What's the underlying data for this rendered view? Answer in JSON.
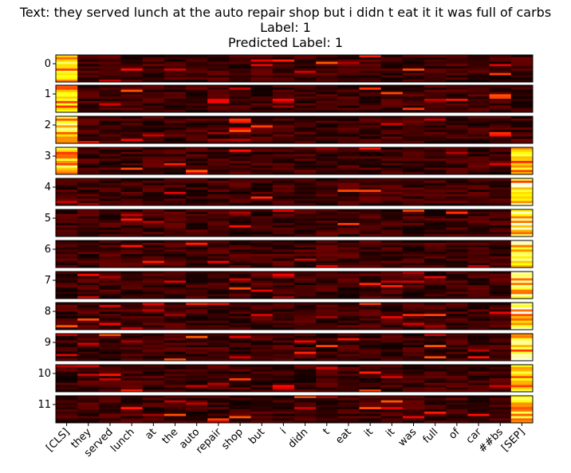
{
  "title": {
    "line1": "Text: they served lunch at the auto repair shop but i didn t eat it it was full of carbs",
    "line2": "Label: 1",
    "line3": "Predicted Label: 1"
  },
  "colormap": "hot",
  "chart_data": {
    "type": "heatmap",
    "layers": [
      "0",
      "1",
      "2",
      "3",
      "4",
      "5",
      "6",
      "7",
      "8",
      "9",
      "10",
      "11"
    ],
    "tokens": [
      "[CLS]",
      "they",
      "served",
      "lunch",
      "at",
      "the",
      "auto",
      "repair",
      "shop",
      "but",
      "i",
      "didn",
      "t",
      "eat",
      "it",
      "it",
      "was",
      "full",
      "of",
      "car",
      "##bs",
      "[SEP]"
    ],
    "rows_per_layer": 12,
    "highlights": [
      {
        "layer": 0,
        "token": "[CLS]",
        "level": "high"
      },
      {
        "layer": 1,
        "token": "[CLS]",
        "level": "high"
      },
      {
        "layer": 2,
        "token": "[CLS]",
        "level": "very high"
      },
      {
        "layer": 3,
        "token": "[CLS]",
        "level": "high"
      },
      {
        "layer": 3,
        "token": "[SEP]",
        "level": "high"
      },
      {
        "layer": 4,
        "token": "[SEP]",
        "level": "very high"
      },
      {
        "layer": 5,
        "token": "[SEP]",
        "level": "very high"
      },
      {
        "layer": 6,
        "token": "[SEP]",
        "level": "very high"
      },
      {
        "layer": 7,
        "token": "[SEP]",
        "level": "very high"
      },
      {
        "layer": 8,
        "token": "[SEP]",
        "level": "very high"
      },
      {
        "layer": 9,
        "token": "[SEP]",
        "level": "very high"
      },
      {
        "layer": 10,
        "token": "[SEP]",
        "level": "high"
      },
      {
        "layer": 11,
        "token": "[SEP]",
        "level": "high"
      }
    ]
  }
}
